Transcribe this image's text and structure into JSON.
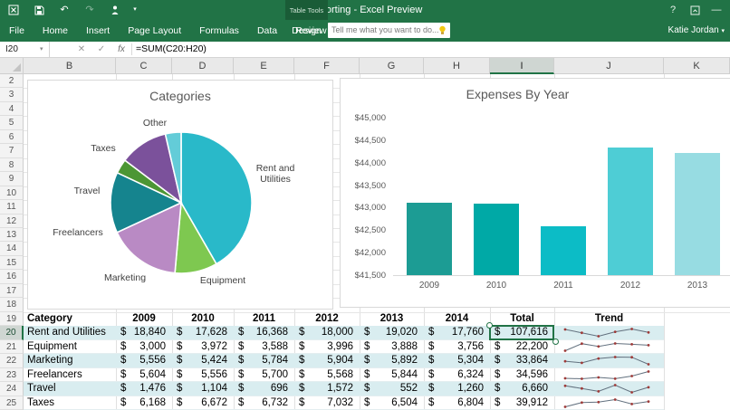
{
  "app": {
    "title": "Reporting - Excel Preview",
    "quick_access_icons": [
      "excel-app",
      "save",
      "undo",
      "redo",
      "touch-mode",
      "customize-quick-access"
    ],
    "window_controls": {
      "help": "?",
      "minimize": "—"
    },
    "contextual_group": "Table Tools",
    "contextual_tab": "Design",
    "tabs": [
      "File",
      "Home",
      "Insert",
      "Page Layout",
      "Formulas",
      "Data",
      "Review",
      "View"
    ],
    "tell_me_placeholder": "Tell me what you want to do...",
    "user": "Katie Jordan"
  },
  "formula_bar": {
    "name_box": "I20",
    "fx_label": "fx",
    "formula": "=SUM(C20:H20)"
  },
  "grid": {
    "columns": [
      "B",
      "C",
      "D",
      "E",
      "F",
      "G",
      "H",
      "I",
      "J",
      "K"
    ],
    "selected_column": "I",
    "row_start": 2,
    "row_end": 25,
    "selected_row": 20
  },
  "table": {
    "headers": [
      "Category",
      "2009",
      "2010",
      "2011",
      "2012",
      "2013",
      "2014",
      "Total",
      "Trend"
    ],
    "currency_symbol": "$",
    "rows": [
      {
        "category": "Rent and Utilities",
        "values": [
          "18,840",
          "17,628",
          "16,368",
          "18,000",
          "19,020",
          "17,760"
        ],
        "total": "107,616"
      },
      {
        "category": "Equipment",
        "values": [
          "3,000",
          "3,972",
          "3,588",
          "3,996",
          "3,888",
          "3,756"
        ],
        "total": "22,200"
      },
      {
        "category": "Marketing",
        "values": [
          "5,556",
          "5,424",
          "5,784",
          "5,904",
          "5,892",
          "5,304"
        ],
        "total": "33,864"
      },
      {
        "category": "Freelancers",
        "values": [
          "5,604",
          "5,556",
          "5,700",
          "5,568",
          "5,844",
          "6,324"
        ],
        "total": "34,596"
      },
      {
        "category": "Travel",
        "values": [
          "1,476",
          "1,104",
          "696",
          "1,572",
          "552",
          "1,260"
        ],
        "total": "6,660"
      },
      {
        "category": "Taxes",
        "values": [
          "6,168",
          "6,672",
          "6,732",
          "7,032",
          "6,504",
          "6,804"
        ],
        "total": "39,912"
      }
    ],
    "sparkline_colors": {
      "line": "#62707e",
      "marker": "#9e3a38"
    }
  },
  "chart_data": [
    {
      "type": "pie",
      "title": "Categories",
      "labels": [
        "Rent and Utilities",
        "Equipment",
        "Marketing",
        "Freelancers",
        "Travel",
        "Taxes",
        "Other"
      ],
      "values": [
        41.7,
        9.7,
        16.7,
        13.9,
        3.3,
        11.1,
        3.6
      ],
      "colors": [
        "#29b9c9",
        "#7ec850",
        "#b98ac4",
        "#15848e",
        "#4c9634",
        "#7b519b",
        "#63ccd8"
      ],
      "legend": "none",
      "labels_outside": true
    },
    {
      "type": "bar",
      "title": "Expenses By Year",
      "categories": [
        "2009",
        "2010",
        "2011",
        "2012",
        "2013"
      ],
      "values": [
        43100,
        43080,
        42590,
        44340,
        44220
      ],
      "colors": [
        "#1c9c94",
        "#00a9a6",
        "#0cbcc6",
        "#4ecdd5",
        "#97dce2"
      ],
      "ylim": [
        41500,
        45000
      ],
      "ytick_labels": [
        "$45,000",
        "$44,500",
        "$44,000",
        "$43,500",
        "$43,000",
        "$42,500",
        "$42,000",
        "$41,500"
      ],
      "grid": "baseline-only",
      "legend": "none"
    }
  ]
}
